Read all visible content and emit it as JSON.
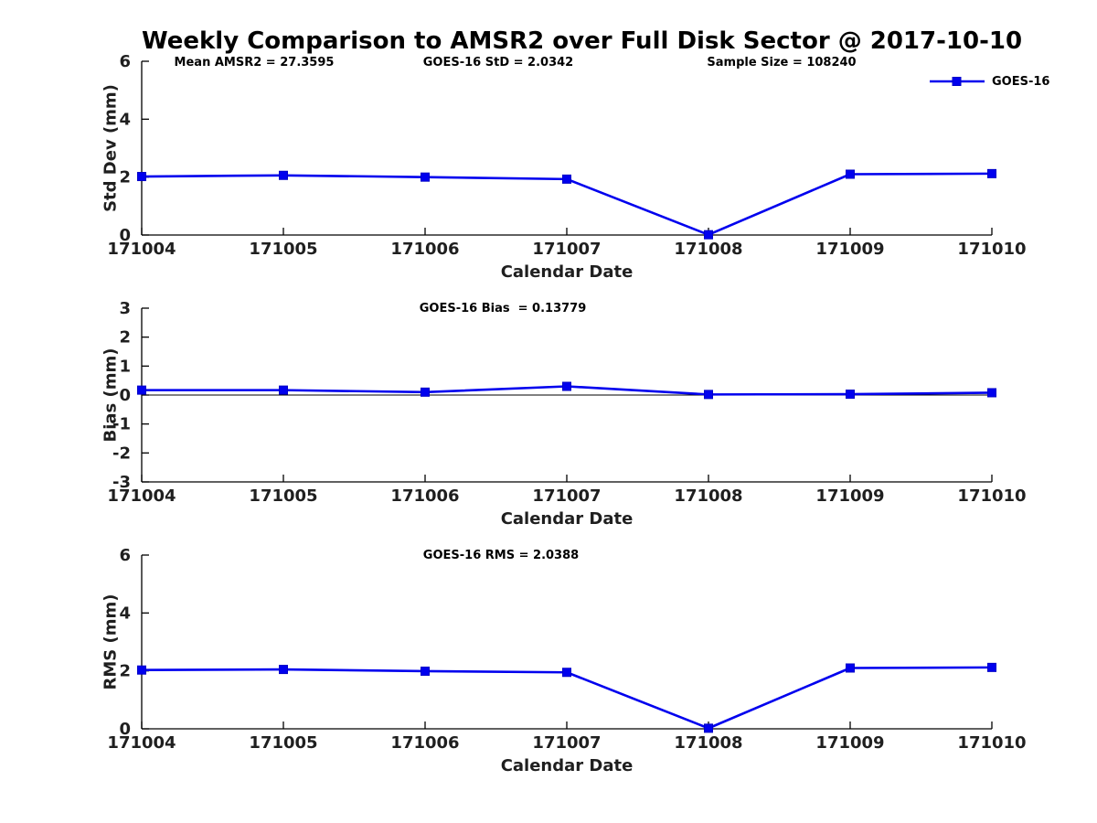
{
  "title": "Weekly Comparison to AMSR2 over Full Disk Sector @ 2017-10-10",
  "legend": {
    "label": "GOES-16",
    "color": "#0000EE",
    "marker": "filled-square",
    "position": "top-right"
  },
  "chart_data": [
    {
      "type": "line",
      "name": "std-dev-subplot",
      "ylabel": "Std Dev (mm)",
      "xlabel": "Calendar Date",
      "categories": [
        "171004",
        "171005",
        "171006",
        "171007",
        "171008",
        "171009",
        "171010"
      ],
      "series": [
        {
          "name": "GOES-16",
          "values": [
            2.02,
            2.06,
            2.0,
            1.93,
            0.01,
            2.1,
            2.12
          ]
        }
      ],
      "ylim": [
        0,
        6
      ],
      "yticks": [
        0,
        2,
        4,
        6
      ],
      "grid": false,
      "zero_line": false,
      "annotations": [
        "Mean AMSR2 = 27.3595",
        "GOES-16 StD = 2.0342",
        "Sample Size = 108240"
      ]
    },
    {
      "type": "line",
      "name": "bias-subplot",
      "ylabel": "Bias (mm)",
      "xlabel": "Calendar Date",
      "categories": [
        "171004",
        "171005",
        "171006",
        "171007",
        "171008",
        "171009",
        "171010"
      ],
      "series": [
        {
          "name": "GOES-16",
          "values": [
            0.17,
            0.17,
            0.1,
            0.3,
            0.02,
            0.03,
            0.08
          ]
        }
      ],
      "ylim": [
        -3,
        3
      ],
      "yticks": [
        3,
        2,
        1,
        0,
        -1,
        -2,
        -3
      ],
      "grid": false,
      "zero_line": true,
      "annotations": [
        "GOES-16 Bias  = 0.13779"
      ]
    },
    {
      "type": "line",
      "name": "rms-subplot",
      "ylabel": "RMS (mm)",
      "xlabel": "Calendar Date",
      "categories": [
        "171004",
        "171005",
        "171006",
        "171007",
        "171008",
        "171009",
        "171010"
      ],
      "series": [
        {
          "name": "GOES-16",
          "values": [
            2.03,
            2.05,
            1.99,
            1.95,
            0.02,
            2.1,
            2.12
          ]
        }
      ],
      "ylim": [
        0,
        6
      ],
      "yticks": [
        0,
        2,
        4,
        6
      ],
      "grid": false,
      "zero_line": false,
      "annotations": [
        "GOES-16 RMS = 2.0388"
      ]
    }
  ]
}
